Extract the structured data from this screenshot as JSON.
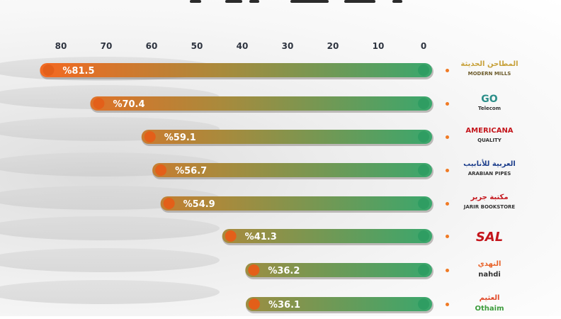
{
  "chart_data": {
    "type": "bar",
    "orientation": "horizontal",
    "direction": "right-to-left",
    "categories": [
      "Modern Mills",
      "GO Telecom",
      "Americana",
      "Arabian Pipes",
      "Jarir Bookstore",
      "SAL",
      "Nahdi",
      "Othaim"
    ],
    "values": [
      81.5,
      70.4,
      59.1,
      56.7,
      54.9,
      41.3,
      36.2,
      36.1
    ],
    "value_labels": [
      "%81.5",
      "%70.4",
      "%59.1",
      "%56.7",
      "%54.9",
      "%41.3",
      "%36.2",
      "%36.1"
    ],
    "ticks": [
      80,
      70,
      60,
      50,
      40,
      30,
      20,
      10,
      0
    ],
    "xlim": [
      0,
      83
    ],
    "colors": {
      "start": "#3aa76d",
      "end": "#f06a22",
      "track": "#8f8a86",
      "dot": "#f07a24"
    }
  },
  "logos": [
    {
      "name": "modern-mills-logo",
      "line1": "المطاحن الحديثة",
      "line2": "MODERN MILLS"
    },
    {
      "name": "go-telecom-logo",
      "line1": "GO",
      "line2": "Telecom"
    },
    {
      "name": "americana-logo",
      "line1": "AMERICANA",
      "line2": "QUALITY"
    },
    {
      "name": "arabian-pipes-logo",
      "line1": "العربية للأنابيب",
      "line2": "ARABIAN PIPES"
    },
    {
      "name": "jarir-logo",
      "line1": "مكتبة جرير",
      "line2": "JARIR BOOKSTORE"
    },
    {
      "name": "sal-logo",
      "line1": "SAL",
      "line2": ""
    },
    {
      "name": "nahdi-logo",
      "line1": "النهدي",
      "line2": "nahdi"
    },
    {
      "name": "othaim-logo",
      "line1": "العثيم",
      "line2": "Othaim"
    }
  ]
}
